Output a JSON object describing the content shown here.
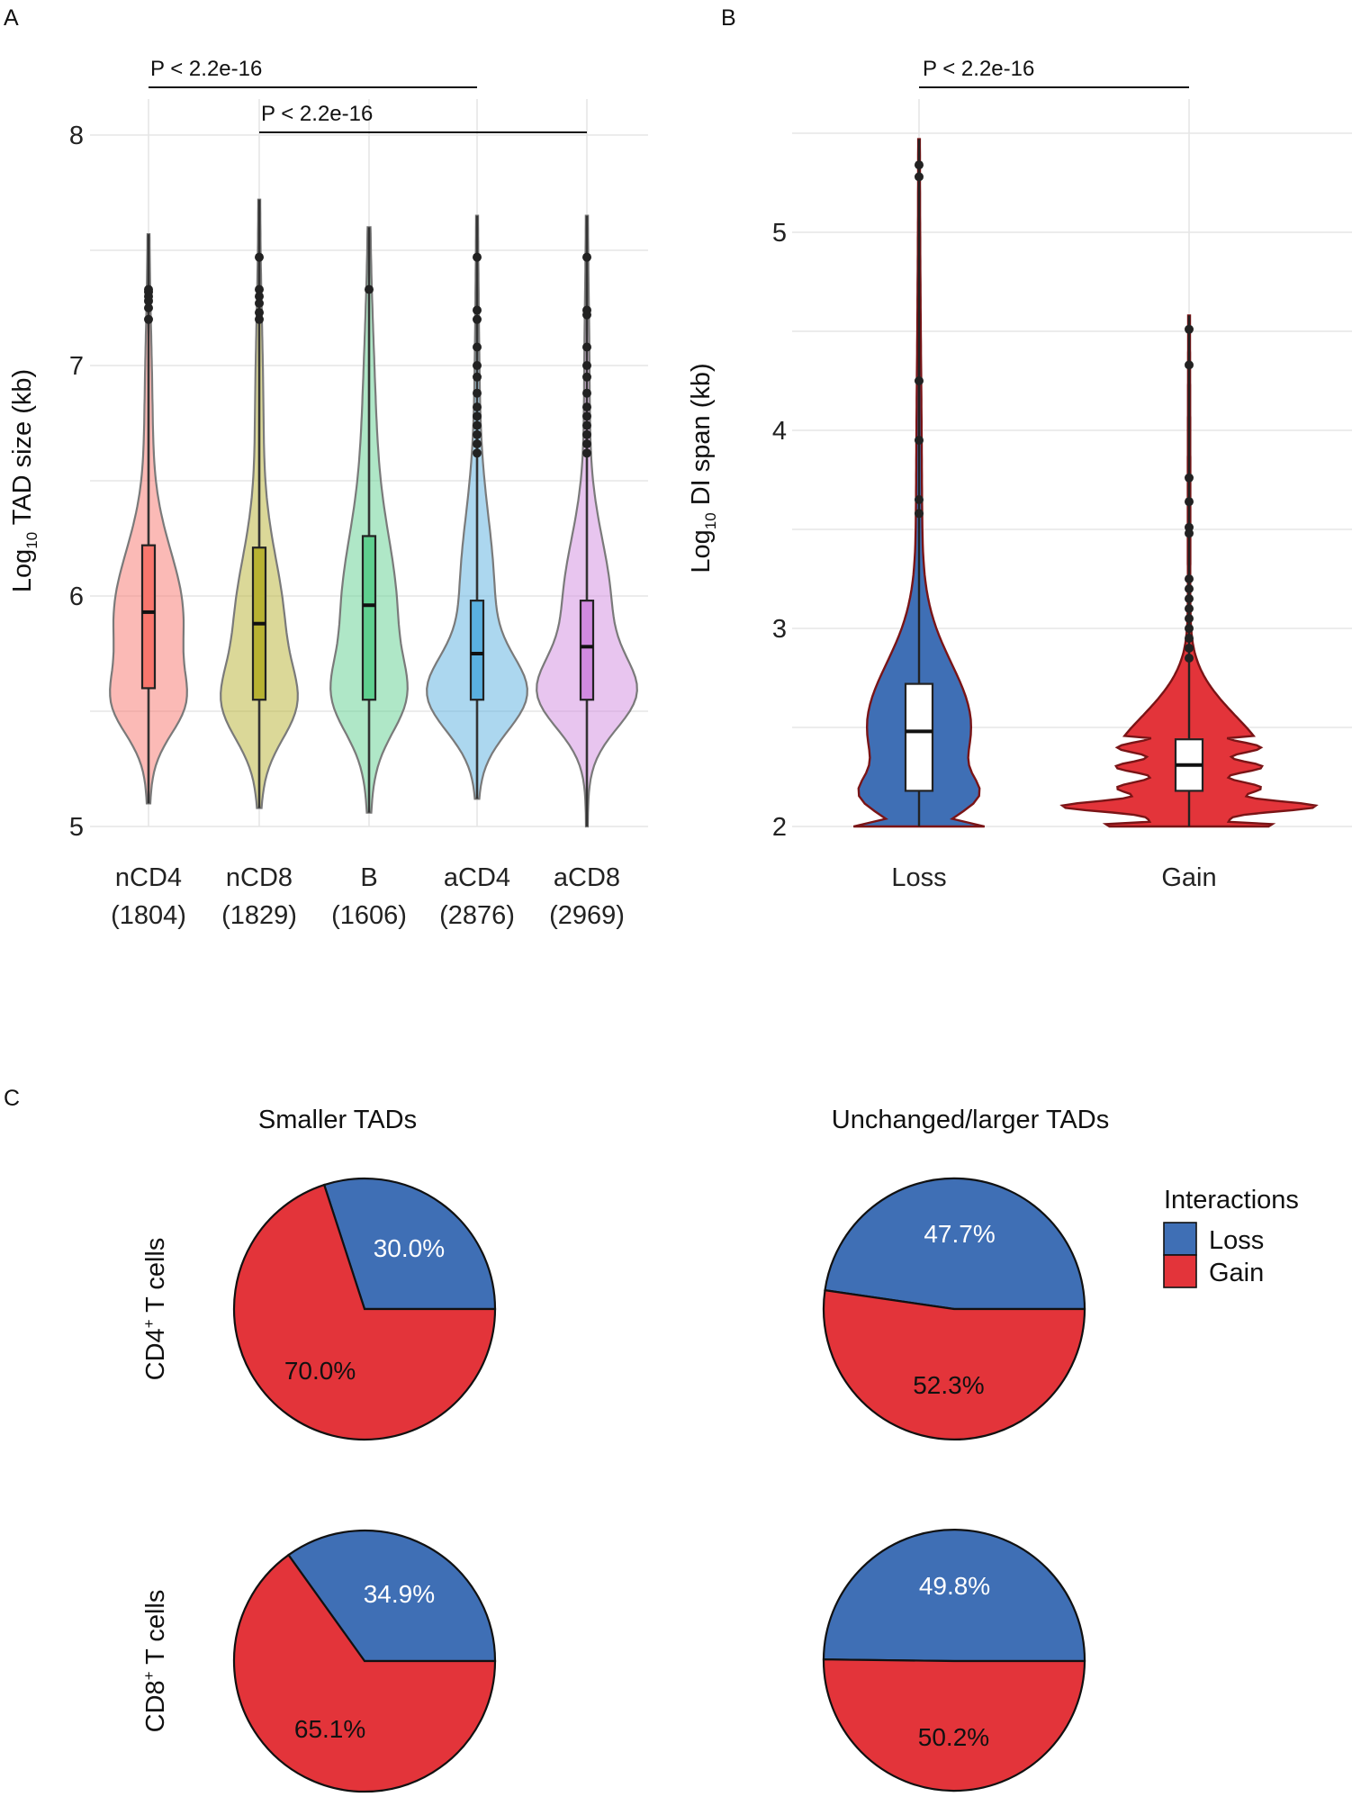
{
  "panels": {
    "a": "A",
    "b": "B",
    "c": "C"
  },
  "colors": {
    "loss": "#3f6fb5",
    "gain": "#e3343a",
    "nCD4": "#f8766d",
    "nCD8": "#b8b232",
    "B": "#5fd08f",
    "aCD4": "#5ab0e0",
    "aCD8": "#d18be0"
  },
  "chart_data": [
    {
      "id": "A",
      "type": "violin",
      "ylabel_main": "Log",
      "ylabel_sub": "10",
      "ylabel_rest": " TAD size (kb)",
      "ylim": [
        5,
        8
      ],
      "yticks": [
        "5",
        "6",
        "7",
        "8"
      ],
      "categories": [
        {
          "name": "nCD4",
          "count": "(1804)",
          "whisker": [
            5.1,
            7.57
          ],
          "q1": 5.6,
          "median": 5.93,
          "q3": 6.22,
          "outliers": [
            7.2,
            7.25,
            7.28,
            7.3,
            7.32,
            7.33
          ]
        },
        {
          "name": "nCD8",
          "count": "(1829)",
          "whisker": [
            5.08,
            7.72
          ],
          "q1": 5.55,
          "median": 5.88,
          "q3": 6.21,
          "outliers": [
            7.2,
            7.23,
            7.27,
            7.3,
            7.33,
            7.47
          ]
        },
        {
          "name": "B",
          "count": "(1606)",
          "whisker": [
            5.06,
            7.6
          ],
          "q1": 5.55,
          "median": 5.96,
          "q3": 6.26,
          "outliers": [
            7.33
          ]
        },
        {
          "name": "aCD4",
          "count": "(2876)",
          "whisker": [
            5.12,
            7.65
          ],
          "q1": 5.55,
          "median": 5.75,
          "q3": 5.98,
          "outliers": [
            6.62,
            6.66,
            6.7,
            6.74,
            6.78,
            6.82,
            6.88,
            6.95,
            7.0,
            7.08,
            7.2,
            7.24,
            7.47
          ]
        },
        {
          "name": "aCD8",
          "count": "(2969)",
          "whisker": [
            5.0,
            7.65
          ],
          "q1": 5.55,
          "median": 5.78,
          "q3": 5.98,
          "outliers": [
            6.62,
            6.66,
            6.7,
            6.74,
            6.78,
            6.82,
            6.88,
            6.95,
            7.0,
            7.08,
            7.22,
            7.24,
            7.47
          ]
        }
      ],
      "significance": [
        {
          "label": "P < 2.2e-16",
          "from": "nCD4",
          "to": "aCD4"
        },
        {
          "label": "P < 2.2e-16",
          "from": "nCD8",
          "to": "aCD8"
        }
      ]
    },
    {
      "id": "B",
      "type": "violin",
      "ylabel_main": "Log",
      "ylabel_sub": "10",
      "ylabel_rest": " DI span (kb)",
      "ylim": [
        2,
        5.5
      ],
      "yticks": [
        "2",
        "3",
        "4",
        "5"
      ],
      "categories": [
        {
          "name": "Loss",
          "whisker": [
            2.0,
            5.47
          ],
          "q1": 2.18,
          "median": 2.48,
          "q3": 2.72,
          "outliers": [
            3.58,
            3.65,
            3.95,
            4.25,
            5.28,
            5.34
          ]
        },
        {
          "name": "Gain",
          "whisker": [
            2.0,
            4.58
          ],
          "q1": 2.18,
          "median": 2.31,
          "q3": 2.44,
          "outliers": [
            2.85,
            2.9,
            2.95,
            3.0,
            3.05,
            3.1,
            3.15,
            3.2,
            3.25,
            3.48,
            3.51,
            3.64,
            3.76,
            4.33,
            4.51
          ]
        }
      ],
      "significance": [
        {
          "label": "P < 2.2e-16",
          "from": "Loss",
          "to": "Gain"
        }
      ]
    },
    {
      "id": "C",
      "type": "pie",
      "column_titles": [
        "Smaller TADs",
        "Unchanged/larger TADs"
      ],
      "row_titles": [
        {
          "pre": "CD4",
          "sup": "+",
          "post": " T cells"
        },
        {
          "pre": "CD8",
          "sup": "+",
          "post": " T cells"
        }
      ],
      "legend": {
        "title": "Interactions",
        "entries": [
          "Loss",
          "Gain"
        ]
      },
      "pies": [
        {
          "row": 0,
          "col": 0,
          "loss": 30.0,
          "gain": 70.0,
          "loss_label": "30.0%",
          "gain_label": "70.0%"
        },
        {
          "row": 0,
          "col": 1,
          "loss": 47.7,
          "gain": 52.3,
          "loss_label": "47.7%",
          "gain_label": "52.3%"
        },
        {
          "row": 1,
          "col": 0,
          "loss": 34.9,
          "gain": 65.1,
          "loss_label": "34.9%",
          "gain_label": "65.1%"
        },
        {
          "row": 1,
          "col": 1,
          "loss": 49.8,
          "gain": 50.2,
          "loss_label": "49.8%",
          "gain_label": "50.2%"
        }
      ]
    }
  ]
}
